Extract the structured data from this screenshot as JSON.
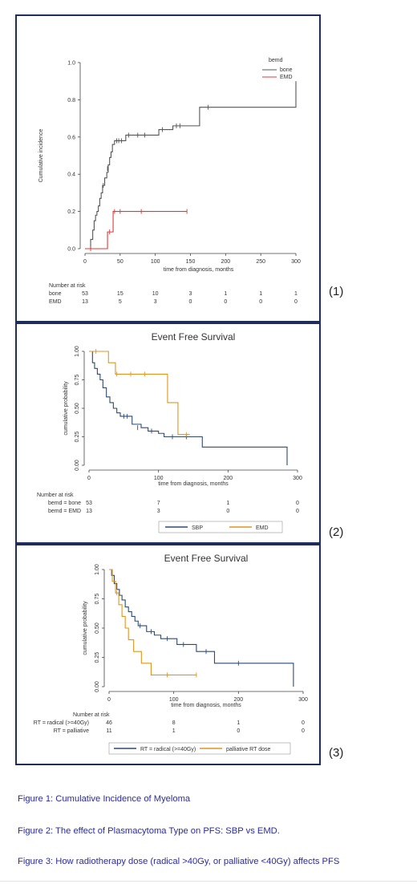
{
  "panel_labels": [
    "(1)",
    "(2)",
    "(3)"
  ],
  "captions": [
    "Figure 1: Cumulative Incidence of Myeloma",
    "Figure 2: The effect of Plasmacytoma Type on PFS: SBP vs EMD.",
    "Figure 3: How radiotherapy dose (radical >40Gy, or palliative <40Gy) affects PFS"
  ],
  "chart_data": [
    {
      "type": "line",
      "title": "",
      "xlabel": "time from diagnosis, months",
      "ylabel": "Cumulative incidence",
      "xlim": [
        0,
        300
      ],
      "ylim": [
        0,
        1.0
      ],
      "xticks": [
        "0",
        "50",
        "100",
        "150",
        "200",
        "250",
        "300"
      ],
      "yticks": [
        "0.0",
        "0.2",
        "0.4",
        "0.6",
        "0.8",
        "1.0"
      ],
      "legend": {
        "title": "bemd",
        "position": "top-right",
        "entries": [
          "bone",
          "EMD"
        ]
      },
      "series": [
        {
          "name": "bone",
          "color": "#555555",
          "points": [
            [
              0,
              0
            ],
            [
              5,
              0
            ],
            [
              8,
              0.05
            ],
            [
              11,
              0.1
            ],
            [
              13,
              0.15
            ],
            [
              15,
              0.18
            ],
            [
              17,
              0.2
            ],
            [
              19,
              0.23
            ],
            [
              21,
              0.27
            ],
            [
              23,
              0.3
            ],
            [
              25,
              0.34
            ],
            [
              28,
              0.38
            ],
            [
              31,
              0.41
            ],
            [
              33,
              0.45
            ],
            [
              35,
              0.49
            ],
            [
              37,
              0.52
            ],
            [
              39,
              0.56
            ],
            [
              42,
              0.58
            ],
            [
              55,
              0.58
            ],
            [
              58,
              0.61
            ],
            [
              100,
              0.61
            ],
            [
              105,
              0.64
            ],
            [
              120,
              0.64
            ],
            [
              125,
              0.66
            ],
            [
              160,
              0.66
            ],
            [
              163,
              0.76
            ],
            [
              300,
              0.76
            ],
            [
              300,
              0.9
            ]
          ],
          "censors": [
            [
              26,
              0.34
            ],
            [
              32,
              0.43
            ],
            [
              45,
              0.58
            ],
            [
              48,
              0.58
            ],
            [
              52,
              0.58
            ],
            [
              62,
              0.61
            ],
            [
              75,
              0.61
            ],
            [
              85,
              0.61
            ],
            [
              110,
              0.64
            ],
            [
              130,
              0.66
            ],
            [
              135,
              0.66
            ],
            [
              175,
              0.76
            ]
          ]
        },
        {
          "name": "EMD",
          "color": "#e03838",
          "points": [
            [
              0,
              0
            ],
            [
              30,
              0
            ],
            [
              32,
              0.09
            ],
            [
              38,
              0.09
            ],
            [
              40,
              0.2
            ],
            [
              145,
              0.2
            ]
          ],
          "censors": [
            [
              8,
              0
            ],
            [
              35,
              0.09
            ],
            [
              42,
              0.2
            ],
            [
              50,
              0.2
            ],
            [
              80,
              0.2
            ],
            [
              145,
              0.2
            ]
          ]
        }
      ],
      "risk_table": {
        "title": "Number at risk",
        "x": [
          0,
          50,
          100,
          150,
          200,
          250,
          300
        ],
        "rows": [
          {
            "label": "bone",
            "values": [
              "53",
              "15",
              "10",
              "3",
              "1",
              "1",
              "1"
            ]
          },
          {
            "label": "EMD",
            "values": [
              "13",
              "5",
              "3",
              "0",
              "0",
              "0",
              "0"
            ]
          }
        ]
      }
    },
    {
      "type": "line",
      "title": "Event Free Survival",
      "xlabel": "time from diagnosis, months",
      "ylabel": "cumulative probability",
      "xlim": [
        0,
        300
      ],
      "ylim": [
        0,
        1.0
      ],
      "xticks": [
        "0",
        "100",
        "200",
        "300"
      ],
      "yticks": [
        "0.00",
        "0.25",
        "0.50",
        "0.75",
        "1.00"
      ],
      "legend": {
        "position": "bottom",
        "entries": [
          "SBP",
          "EMD"
        ]
      },
      "series": [
        {
          "name": "SBP",
          "color": "#2f4a70",
          "points": [
            [
              0,
              1.0
            ],
            [
              5,
              0.9
            ],
            [
              8,
              0.85
            ],
            [
              12,
              0.8
            ],
            [
              16,
              0.75
            ],
            [
              20,
              0.68
            ],
            [
              25,
              0.6
            ],
            [
              30,
              0.55
            ],
            [
              35,
              0.5
            ],
            [
              40,
              0.46
            ],
            [
              45,
              0.43
            ],
            [
              60,
              0.43
            ],
            [
              62,
              0.36
            ],
            [
              75,
              0.33
            ],
            [
              85,
              0.3
            ],
            [
              100,
              0.28
            ],
            [
              108,
              0.25
            ],
            [
              160,
              0.25
            ],
            [
              163,
              0.16
            ],
            [
              280,
              0.16
            ],
            [
              285,
              0.0
            ]
          ],
          "censors": [
            [
              50,
              0.43
            ],
            [
              55,
              0.43
            ],
            [
              70,
              0.33
            ],
            [
              90,
              0.3
            ],
            [
              120,
              0.25
            ],
            [
              140,
              0.25
            ]
          ]
        },
        {
          "name": "EMD",
          "color": "#e0961f",
          "points": [
            [
              0,
              1.0
            ],
            [
              25,
              1.0
            ],
            [
              28,
              0.9
            ],
            [
              35,
              0.9
            ],
            [
              38,
              0.8
            ],
            [
              110,
              0.8
            ],
            [
              113,
              0.55
            ],
            [
              125,
              0.55
            ],
            [
              128,
              0.27
            ],
            [
              145,
              0.27
            ]
          ],
          "censors": [
            [
              10,
              1.0
            ],
            [
              40,
              0.8
            ],
            [
              60,
              0.8
            ],
            [
              80,
              0.8
            ],
            [
              140,
              0.27
            ]
          ]
        }
      ],
      "risk_table": {
        "title": "Number at risk",
        "x": [
          0,
          100,
          200,
          300
        ],
        "rows": [
          {
            "label": "bemd = bone",
            "values": [
              "53",
              "7",
              "1",
              "0"
            ]
          },
          {
            "label": "bemd = EMD",
            "values": [
              "13",
              "3",
              "0",
              "0"
            ]
          }
        ]
      }
    },
    {
      "type": "line",
      "title": "Event Free Survival",
      "xlabel": "time from diagnosis, months",
      "ylabel": "cumulative probability",
      "xlim": [
        0,
        300
      ],
      "ylim": [
        0,
        1.0
      ],
      "xticks": [
        "0",
        "100",
        "200",
        "300"
      ],
      "yticks": [
        "0.00",
        "0.25",
        "0.50",
        "0.75",
        "1.00"
      ],
      "legend": {
        "position": "bottom",
        "entries": [
          "RT = radical (>=40Gy)",
          "palliative RT dose"
        ]
      },
      "series": [
        {
          "name": "RT = radical (>=40Gy)",
          "color": "#2f4a70",
          "points": [
            [
              0,
              1.0
            ],
            [
              4,
              0.95
            ],
            [
              8,
              0.88
            ],
            [
              12,
              0.83
            ],
            [
              16,
              0.78
            ],
            [
              20,
              0.74
            ],
            [
              25,
              0.68
            ],
            [
              30,
              0.64
            ],
            [
              35,
              0.6
            ],
            [
              40,
              0.56
            ],
            [
              45,
              0.52
            ],
            [
              55,
              0.52
            ],
            [
              58,
              0.47
            ],
            [
              70,
              0.44
            ],
            [
              80,
              0.41
            ],
            [
              100,
              0.41
            ],
            [
              105,
              0.36
            ],
            [
              130,
              0.36
            ],
            [
              135,
              0.3
            ],
            [
              160,
              0.3
            ],
            [
              163,
              0.2
            ],
            [
              280,
              0.2
            ],
            [
              285,
              0.0
            ]
          ],
          "censors": [
            [
              48,
              0.52
            ],
            [
              65,
              0.47
            ],
            [
              90,
              0.41
            ],
            [
              115,
              0.36
            ],
            [
              150,
              0.3
            ],
            [
              200,
              0.2
            ]
          ]
        },
        {
          "name": "palliative RT dose",
          "color": "#e0961f",
          "points": [
            [
              0,
              1.0
            ],
            [
              5,
              0.9
            ],
            [
              10,
              0.8
            ],
            [
              15,
              0.7
            ],
            [
              20,
              0.6
            ],
            [
              25,
              0.5
            ],
            [
              30,
              0.4
            ],
            [
              38,
              0.3
            ],
            [
              50,
              0.2
            ],
            [
              65,
              0.1
            ],
            [
              135,
              0.1
            ]
          ],
          "censors": [
            [
              12,
              0.8
            ],
            [
              90,
              0.1
            ],
            [
              135,
              0.1
            ]
          ]
        }
      ],
      "risk_table": {
        "title": "Number at risk",
        "x": [
          0,
          100,
          200,
          300
        ],
        "rows": [
          {
            "label": "RT = radical (>=40Gy)",
            "values": [
              "46",
              "8",
              "1",
              "0"
            ]
          },
          {
            "label": "RT = palliative",
            "values": [
              "11",
              "1",
              "0",
              "0"
            ]
          }
        ]
      }
    }
  ]
}
